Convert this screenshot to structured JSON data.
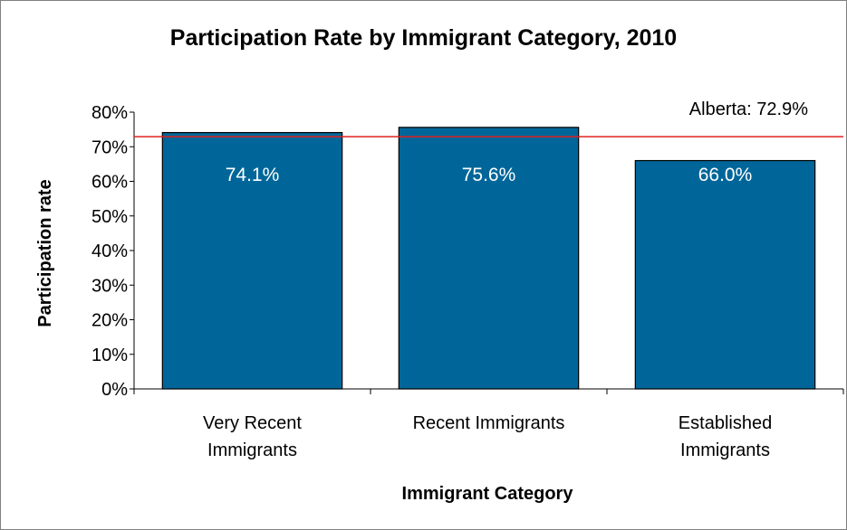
{
  "chart_data": {
    "type": "bar",
    "title": "Participation Rate by Immigrant Category, 2010",
    "xlabel": "Immigrant Category",
    "ylabel": "Participation rate",
    "categories": [
      [
        "Very Recent",
        "Immigrants"
      ],
      [
        "Recent Immigrants"
      ],
      [
        "Established",
        "Immigrants"
      ]
    ],
    "values": [
      74.1,
      75.6,
      66.0
    ],
    "data_labels": [
      "74.1%",
      "75.6%",
      "66.0%"
    ],
    "ylim": [
      0,
      80
    ],
    "yticks": [
      "0%",
      "10%",
      "20%",
      "30%",
      "40%",
      "50%",
      "60%",
      "70%",
      "80%"
    ],
    "reference_line": {
      "value": 72.9,
      "label": "Alberta: 72.9%"
    },
    "grid": false,
    "colors": {
      "bar": "#006699",
      "bar_border": "#000000",
      "reference": "#e02020",
      "axis": "#000000"
    }
  }
}
